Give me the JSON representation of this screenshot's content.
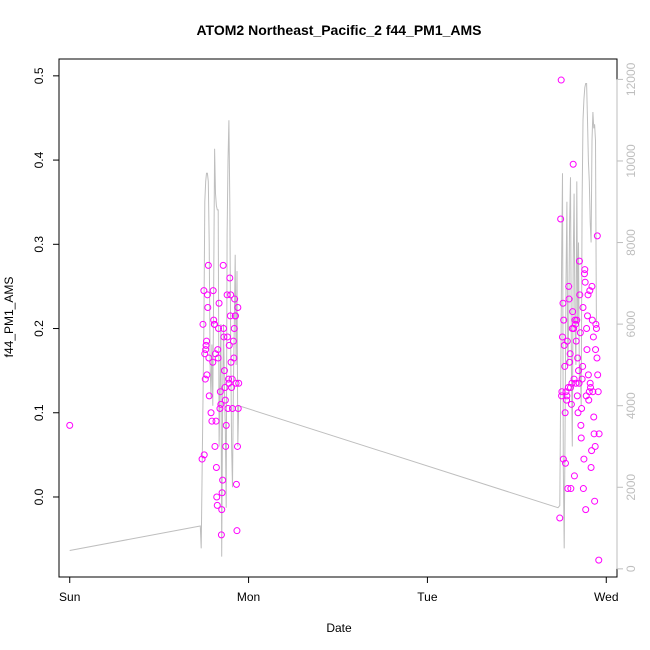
{
  "chart_data": {
    "type": "scatter",
    "title": "ATOM2 Northeast_Pacific_2 f44_PM1_AMS",
    "xlabel": "Date",
    "ylabel": "f44_PM1_AMS",
    "x_ticks": [
      "Sun",
      "Mon",
      "Tue",
      "Wed"
    ],
    "x_unit": "days since Sunday 00:00",
    "xlim": [
      -0.06,
      3.06
    ],
    "ylim": [
      -0.095,
      0.52
    ],
    "y_ticks": [
      0.0,
      0.1,
      0.2,
      0.3,
      0.4,
      0.5
    ],
    "y2lim": [
      -200,
      12500
    ],
    "y2_ticks": [
      0,
      2000,
      4000,
      6000,
      8000,
      10000,
      12000
    ],
    "grid": false,
    "colors": {
      "points": "#ff00ff",
      "line": "#bebebe",
      "axis": "#000000",
      "secondary_axis": "#bebebe"
    },
    "series": [
      {
        "values": [
          [
            0.0,
            0.085
          ],
          [
            0.74,
            0.045
          ],
          [
            0.745,
            0.205
          ],
          [
            0.75,
            0.245
          ],
          [
            0.752,
            0.05
          ],
          [
            0.755,
            0.17
          ],
          [
            0.758,
            0.14
          ],
          [
            0.76,
            0.175
          ],
          [
            0.762,
            0.18
          ],
          [
            0.765,
            0.185
          ],
          [
            0.767,
            0.145
          ],
          [
            0.77,
            0.24
          ],
          [
            0.772,
            0.225
          ],
          [
            0.775,
            0.275
          ],
          [
            0.778,
            0.165
          ],
          [
            0.78,
            0.12
          ],
          [
            0.79,
            0.1
          ],
          [
            0.795,
            0.09
          ],
          [
            0.8,
            0.16
          ],
          [
            0.802,
            0.245
          ],
          [
            0.805,
            0.21
          ],
          [
            0.808,
            0.205
          ],
          [
            0.81,
            0.205
          ],
          [
            0.812,
            0.06
          ],
          [
            0.815,
            0.17
          ],
          [
            0.818,
            0.09
          ],
          [
            0.82,
            0.035
          ],
          [
            0.822,
            0.0
          ],
          [
            0.825,
            -0.01
          ],
          [
            0.828,
            0.175
          ],
          [
            0.83,
            0.165
          ],
          [
            0.832,
            0.2
          ],
          [
            0.835,
            0.23
          ],
          [
            0.84,
            0.105
          ],
          [
            0.842,
            0.125
          ],
          [
            0.845,
            0.11
          ],
          [
            0.848,
            -0.045
          ],
          [
            0.85,
            -0.015
          ],
          [
            0.852,
            0.005
          ],
          [
            0.855,
            0.02
          ],
          [
            0.858,
            0.275
          ],
          [
            0.86,
            0.2
          ],
          [
            0.862,
            0.19
          ],
          [
            0.865,
            0.15
          ],
          [
            0.868,
            0.13
          ],
          [
            0.87,
            0.115
          ],
          [
            0.872,
            0.06
          ],
          [
            0.875,
            0.085
          ],
          [
            0.88,
            0.24
          ],
          [
            0.882,
            0.19
          ],
          [
            0.885,
            0.105
          ],
          [
            0.888,
            0.14
          ],
          [
            0.89,
            0.135
          ],
          [
            0.892,
            0.18
          ],
          [
            0.895,
            0.26
          ],
          [
            0.898,
            0.215
          ],
          [
            0.9,
            0.24
          ],
          [
            0.902,
            0.16
          ],
          [
            0.905,
            0.13
          ],
          [
            0.908,
            0.14
          ],
          [
            0.91,
            0.105
          ],
          [
            0.915,
            0.185
          ],
          [
            0.918,
            0.165
          ],
          [
            0.92,
            0.2
          ],
          [
            0.922,
            0.235
          ],
          [
            0.925,
            0.215
          ],
          [
            0.927,
            0.215
          ],
          [
            0.93,
            0.135
          ],
          [
            0.932,
            0.015
          ],
          [
            0.935,
            -0.04
          ],
          [
            0.938,
            0.06
          ],
          [
            0.94,
            0.225
          ],
          [
            0.942,
            0.105
          ],
          [
            0.945,
            0.135
          ],
          [
            2.74,
            -0.025
          ],
          [
            2.745,
            0.33
          ],
          [
            2.748,
            0.495
          ],
          [
            2.75,
            0.12
          ],
          [
            2.752,
            0.125
          ],
          [
            2.755,
            0.19
          ],
          [
            2.758,
            0.23
          ],
          [
            2.76,
            0.045
          ],
          [
            2.762,
            0.21
          ],
          [
            2.765,
            0.18
          ],
          [
            2.768,
            0.155
          ],
          [
            2.77,
            0.1
          ],
          [
            2.772,
            0.04
          ],
          [
            2.775,
            0.125
          ],
          [
            2.778,
            0.115
          ],
          [
            2.78,
            0.12
          ],
          [
            2.782,
            0.185
          ],
          [
            2.785,
            0.01
          ],
          [
            2.788,
            0.13
          ],
          [
            2.79,
            0.25
          ],
          [
            2.792,
            0.235
          ],
          [
            2.795,
            0.16
          ],
          [
            2.798,
            0.17
          ],
          [
            2.8,
            0.13
          ],
          [
            2.802,
            0.01
          ],
          [
            2.805,
            0.11
          ],
          [
            2.808,
            0.135
          ],
          [
            2.81,
            0.2
          ],
          [
            2.812,
            0.22
          ],
          [
            2.815,
            0.395
          ],
          [
            2.818,
            0.2
          ],
          [
            2.82,
            0.14
          ],
          [
            2.822,
            0.025
          ],
          [
            2.825,
            0.21
          ],
          [
            2.828,
            0.205
          ],
          [
            2.83,
            0.135
          ],
          [
            2.832,
            0.185
          ],
          [
            2.835,
            0.21
          ],
          [
            2.838,
            0.12
          ],
          [
            2.84,
            0.165
          ],
          [
            2.842,
            0.1
          ],
          [
            2.845,
            0.15
          ],
          [
            2.848,
            0.135
          ],
          [
            2.85,
            0.28
          ],
          [
            2.852,
            0.24
          ],
          [
            2.855,
            0.195
          ],
          [
            2.858,
            0.085
          ],
          [
            2.86,
            0.07
          ],
          [
            2.862,
            0.105
          ],
          [
            2.865,
            0.14
          ],
          [
            2.868,
            0.155
          ],
          [
            2.87,
            0.225
          ],
          [
            2.872,
            0.01
          ],
          [
            2.875,
            0.045
          ],
          [
            2.878,
            0.265
          ],
          [
            2.88,
            0.27
          ],
          [
            2.882,
            0.255
          ],
          [
            2.885,
            -0.015
          ],
          [
            2.888,
            0.12
          ],
          [
            2.89,
            0.2
          ],
          [
            2.892,
            0.175
          ],
          [
            2.895,
            0.215
          ],
          [
            2.898,
            0.24
          ],
          [
            2.9,
            0.145
          ],
          [
            2.902,
            0.115
          ],
          [
            2.905,
            0.125
          ],
          [
            2.908,
            0.245
          ],
          [
            2.91,
            0.135
          ],
          [
            2.912,
            0.13
          ],
          [
            2.915,
            0.035
          ],
          [
            2.918,
            0.055
          ],
          [
            2.92,
            0.25
          ],
          [
            2.922,
            0.21
          ],
          [
            2.925,
            0.125
          ],
          [
            2.928,
            0.19
          ],
          [
            2.93,
            0.095
          ],
          [
            2.932,
            0.075
          ],
          [
            2.935,
            -0.005
          ],
          [
            2.938,
            0.06
          ],
          [
            2.94,
            0.175
          ],
          [
            2.942,
            0.205
          ],
          [
            2.945,
            0.2
          ],
          [
            2.948,
            0.165
          ],
          [
            2.95,
            0.31
          ],
          [
            2.952,
            0.145
          ],
          [
            2.955,
            0.125
          ],
          [
            2.958,
            -0.075
          ],
          [
            2.96,
            0.075
          ]
        ]
      },
      {
        "axis": "right",
        "values": [
          [
            0.0,
            450
          ],
          [
            0.73,
            1050
          ],
          [
            0.735,
            500
          ],
          [
            0.75,
            6000
          ],
          [
            0.755,
            9000
          ],
          [
            0.76,
            9500
          ],
          [
            0.765,
            9700
          ],
          [
            0.77,
            9700
          ],
          [
            0.775,
            9500
          ],
          [
            0.78,
            8000
          ],
          [
            0.785,
            5000
          ],
          [
            0.79,
            4200
          ],
          [
            0.795,
            5500
          ],
          [
            0.8,
            4000
          ],
          [
            0.805,
            7000
          ],
          [
            0.81,
            10300
          ],
          [
            0.815,
            9200
          ],
          [
            0.82,
            8900
          ],
          [
            0.825,
            8800
          ],
          [
            0.83,
            8800
          ],
          [
            0.835,
            3000
          ],
          [
            0.84,
            4500
          ],
          [
            0.845,
            6000
          ],
          [
            0.85,
            300
          ],
          [
            0.855,
            4000
          ],
          [
            0.86,
            6000
          ],
          [
            0.865,
            4500
          ],
          [
            0.87,
            3500
          ],
          [
            0.875,
            1500
          ],
          [
            0.88,
            8200
          ],
          [
            0.885,
            10000
          ],
          [
            0.89,
            11000
          ],
          [
            0.895,
            9000
          ],
          [
            0.9,
            5500
          ],
          [
            0.905,
            3000
          ],
          [
            0.91,
            2000
          ],
          [
            0.915,
            4500
          ],
          [
            0.92,
            6000
          ],
          [
            0.925,
            7700
          ],
          [
            0.93,
            5000
          ],
          [
            0.935,
            7300
          ],
          [
            0.94,
            3000
          ],
          [
            0.945,
            4000
          ],
          [
            2.73,
            1500
          ],
          [
            2.74,
            1550
          ],
          [
            2.745,
            4500
          ],
          [
            2.75,
            7500
          ],
          [
            2.755,
            9700
          ],
          [
            2.76,
            2500
          ],
          [
            2.765,
            500
          ],
          [
            2.77,
            3500
          ],
          [
            2.775,
            7000
          ],
          [
            2.78,
            9000
          ],
          [
            2.785,
            5000
          ],
          [
            2.79,
            6000
          ],
          [
            2.795,
            8500
          ],
          [
            2.8,
            9600
          ],
          [
            2.805,
            5000
          ],
          [
            2.81,
            3000
          ],
          [
            2.815,
            7500
          ],
          [
            2.82,
            9200
          ],
          [
            2.825,
            6000
          ],
          [
            2.83,
            5000
          ],
          [
            2.835,
            9500
          ],
          [
            2.84,
            6000
          ],
          [
            2.845,
            8000
          ],
          [
            2.85,
            4500
          ],
          [
            2.855,
            5000
          ],
          [
            2.86,
            4000
          ],
          [
            2.865,
            9000
          ],
          [
            2.87,
            11000
          ],
          [
            2.875,
            11500
          ],
          [
            2.88,
            11800
          ],
          [
            2.885,
            11900
          ],
          [
            2.89,
            11900
          ],
          [
            2.895,
            11000
          ],
          [
            2.9,
            10000
          ],
          [
            2.905,
            9500
          ],
          [
            2.91,
            8500
          ],
          [
            2.915,
            8000
          ],
          [
            2.92,
            10500
          ],
          [
            2.925,
            11200
          ],
          [
            2.93,
            10800
          ],
          [
            2.935,
            10900
          ],
          [
            2.94,
            10500
          ],
          [
            2.945,
            6000
          ]
        ]
      }
    ]
  }
}
